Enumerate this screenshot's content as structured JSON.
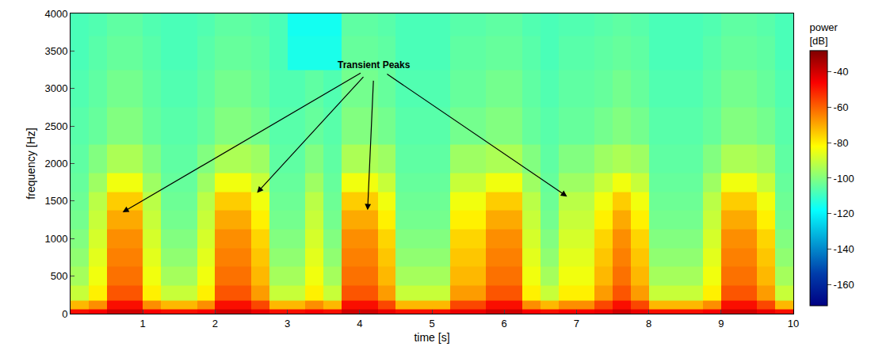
{
  "chart_data": {
    "type": "heatmap",
    "x_label": "time [s]",
    "y_label": "frequency [Hz]",
    "color": "Jet",
    "xlim": [
      0,
      10
    ],
    "xticks": [
      1,
      2,
      3,
      4,
      5,
      6,
      7,
      8,
      9,
      10
    ],
    "ylim": [
      0,
      4000
    ],
    "yticks": [
      0,
      500,
      1000,
      1500,
      2000,
      2500,
      3000,
      3500,
      4000
    ],
    "colorbar": {
      "title": "power [dB]",
      "range": [
        -172,
        -28
      ],
      "ticks": [
        -160,
        -140,
        -120,
        -100,
        -80,
        -60,
        -40
      ]
    },
    "x": [
      0.125,
      0.375,
      0.625,
      0.875,
      1.125,
      1.375,
      1.625,
      1.875,
      2.125,
      2.375,
      2.625,
      2.875,
      3.125,
      3.375,
      3.625,
      3.875,
      4.125,
      4.375,
      4.625,
      4.875,
      5.125,
      5.375,
      5.625,
      5.875,
      6.125,
      6.375,
      6.625,
      6.875,
      7.125,
      7.375,
      7.625,
      7.875,
      8.125,
      8.375,
      8.625,
      8.875,
      9.125,
      9.375,
      9.625,
      9.875
    ],
    "y": [
      25,
      100,
      250,
      500,
      750,
      1000,
      1250,
      1500,
      1750,
      2000,
      2500,
      3000,
      3500,
      3900
    ],
    "cells": [
      [
        -48,
        -46,
        -40,
        -40,
        -46,
        -48,
        -48,
        -46,
        -40,
        -40,
        -44,
        -48,
        -48,
        -46,
        -48,
        -40,
        -40,
        -44,
        -48,
        -48,
        -48,
        -44,
        -44,
        -40,
        -40,
        -46,
        -48,
        -46,
        -46,
        -44,
        -40,
        -44,
        -48,
        -48,
        -48,
        -46,
        -40,
        -40,
        -44,
        -48
      ],
      [
        -72,
        -66,
        -48,
        -48,
        -66,
        -72,
        -72,
        -66,
        -48,
        -48,
        -56,
        -72,
        -72,
        -66,
        -72,
        -48,
        -48,
        -56,
        -72,
        -72,
        -72,
        -56,
        -56,
        -48,
        -48,
        -66,
        -72,
        -66,
        -66,
        -56,
        -48,
        -56,
        -72,
        -72,
        -72,
        -66,
        -48,
        -48,
        -56,
        -72
      ],
      [
        -90,
        -80,
        -58,
        -58,
        -80,
        -90,
        -90,
        -80,
        -58,
        -58,
        -68,
        -90,
        -90,
        -80,
        -90,
        -58,
        -58,
        -68,
        -90,
        -90,
        -90,
        -68,
        -68,
        -58,
        -58,
        -80,
        -90,
        -80,
        -80,
        -68,
        -58,
        -68,
        -90,
        -90,
        -90,
        -80,
        -58,
        -58,
        -68,
        -90
      ],
      [
        -95,
        -84,
        -62,
        -62,
        -84,
        -95,
        -95,
        -84,
        -62,
        -62,
        -72,
        -95,
        -95,
        -84,
        -95,
        -62,
        -62,
        -72,
        -95,
        -95,
        -95,
        -72,
        -72,
        -62,
        -62,
        -84,
        -95,
        -84,
        -84,
        -72,
        -62,
        -72,
        -95,
        -95,
        -95,
        -84,
        -62,
        -62,
        -72,
        -95
      ],
      [
        -98,
        -86,
        -64,
        -64,
        -86,
        -98,
        -98,
        -86,
        -64,
        -64,
        -74,
        -98,
        -98,
        -86,
        -98,
        -64,
        -64,
        -74,
        -98,
        -98,
        -98,
        -74,
        -74,
        -64,
        -64,
        -86,
        -98,
        -86,
        -86,
        -74,
        -64,
        -74,
        -98,
        -98,
        -98,
        -86,
        -64,
        -64,
        -74,
        -98
      ],
      [
        -100,
        -88,
        -66,
        -66,
        -88,
        -100,
        -100,
        -88,
        -66,
        -66,
        -76,
        -100,
        -100,
        -88,
        -100,
        -66,
        -66,
        -76,
        -100,
        -100,
        -100,
        -76,
        -76,
        -66,
        -66,
        -88,
        -100,
        -88,
        -88,
        -76,
        -66,
        -76,
        -100,
        -100,
        -100,
        -88,
        -66,
        -66,
        -76,
        -100
      ],
      [
        -102,
        -90,
        -70,
        -70,
        -90,
        -102,
        -102,
        -90,
        -70,
        -70,
        -80,
        -102,
        -102,
        -90,
        -102,
        -70,
        -70,
        -80,
        -102,
        -102,
        -102,
        -80,
        -80,
        -70,
        -70,
        -90,
        -102,
        -90,
        -90,
        -80,
        -70,
        -80,
        -102,
        -102,
        -102,
        -90,
        -70,
        -70,
        -80,
        -102
      ],
      [
        -103,
        -92,
        -75,
        -75,
        -92,
        -103,
        -103,
        -92,
        -75,
        -75,
        -84,
        -103,
        -103,
        -92,
        -103,
        -75,
        -75,
        -84,
        -103,
        -103,
        -103,
        -84,
        -84,
        -75,
        -75,
        -92,
        -103,
        -92,
        -92,
        -84,
        -75,
        -84,
        -103,
        -103,
        -103,
        -92,
        -75,
        -75,
        -84,
        -103
      ],
      [
        -104,
        -96,
        -84,
        -84,
        -96,
        -104,
        -104,
        -96,
        -84,
        -84,
        -90,
        -104,
        -104,
        -96,
        -104,
        -84,
        -84,
        -90,
        -104,
        -104,
        -104,
        -90,
        -90,
        -84,
        -84,
        -96,
        -104,
        -96,
        -96,
        -90,
        -84,
        -90,
        -104,
        -104,
        -104,
        -96,
        -84,
        -84,
        -90,
        -104
      ],
      [
        -105,
        -100,
        -94,
        -94,
        -100,
        -105,
        -105,
        -100,
        -94,
        -94,
        -96,
        -105,
        -105,
        -100,
        -105,
        -94,
        -94,
        -96,
        -105,
        -105,
        -105,
        -96,
        -96,
        -94,
        -94,
        -100,
        -105,
        -100,
        -100,
        -96,
        -94,
        -96,
        -105,
        -105,
        -105,
        -100,
        -94,
        -94,
        -96,
        -105
      ],
      [
        -106,
        -104,
        -100,
        -100,
        -104,
        -106,
        -106,
        -104,
        -100,
        -100,
        -102,
        -106,
        -106,
        -104,
        -106,
        -100,
        -100,
        -102,
        -106,
        -106,
        -106,
        -102,
        -102,
        -100,
        -100,
        -104,
        -106,
        -104,
        -104,
        -102,
        -100,
        -102,
        -106,
        -106,
        -106,
        -104,
        -100,
        -100,
        -102,
        -106
      ],
      [
        -107,
        -105,
        -102,
        -102,
        -105,
        -107,
        -107,
        -105,
        -102,
        -102,
        -104,
        -107,
        -107,
        -105,
        -107,
        -102,
        -102,
        -104,
        -107,
        -107,
        -107,
        -104,
        -104,
        -102,
        -102,
        -105,
        -107,
        -105,
        -105,
        -104,
        -102,
        -104,
        -107,
        -107,
        -107,
        -105,
        -102,
        -102,
        -104,
        -107
      ],
      [
        -108,
        -106,
        -104,
        -104,
        -106,
        -108,
        -108,
        -106,
        -104,
        -104,
        -105,
        -108,
        -115,
        -115,
        -115,
        -104,
        -104,
        -105,
        -108,
        -108,
        -108,
        -105,
        -105,
        -104,
        -104,
        -106,
        -108,
        -106,
        -106,
        -105,
        -104,
        -105,
        -108,
        -108,
        -108,
        -106,
        -104,
        -104,
        -105,
        -108
      ],
      [
        -108,
        -107,
        -105,
        -105,
        -107,
        -108,
        -108,
        -107,
        -105,
        -105,
        -106,
        -108,
        -116,
        -116,
        -116,
        -105,
        -105,
        -106,
        -108,
        -108,
        -108,
        -106,
        -106,
        -105,
        -105,
        -107,
        -108,
        -107,
        -107,
        -106,
        -105,
        -106,
        -108,
        -108,
        -108,
        -107,
        -105,
        -105,
        -106,
        -108
      ]
    ],
    "annotations": [
      {
        "text": "Transient Peaks",
        "x": 4.2,
        "y": 3310,
        "arrows": [
          {
            "x": 0.72,
            "y": 1350
          },
          {
            "x": 2.58,
            "y": 1610
          },
          {
            "x": 4.11,
            "y": 1380
          },
          {
            "x": 6.87,
            "y": 1560
          }
        ]
      }
    ]
  }
}
